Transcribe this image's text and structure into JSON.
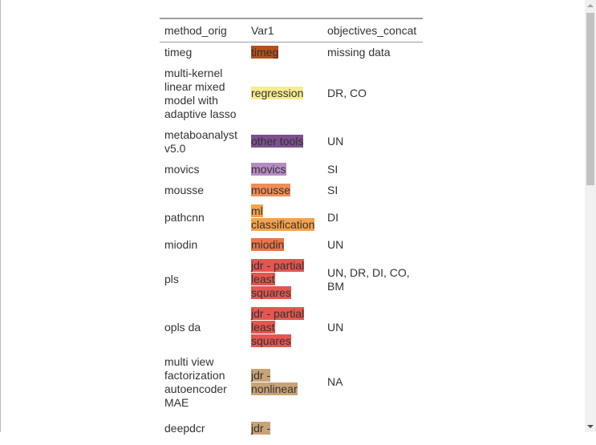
{
  "table": {
    "columns": [
      "method_orig",
      "Var1",
      "objectives_concat"
    ],
    "rows": [
      {
        "method": "timeg",
        "var1": "timeg",
        "color": "#b5501c",
        "objectives": "missing data"
      },
      {
        "method": "multi-kernel linear mixed model with adaptive lasso",
        "var1": "regression",
        "color": "#f7ec8f",
        "objectives": "DR, CO"
      },
      {
        "method": "metaboanalyst v5.0",
        "var1": "other tools",
        "color": "#7d508f",
        "objectives": "UN"
      },
      {
        "method": "movics",
        "var1": "movics",
        "color": "#b58bc4",
        "objectives": "SI"
      },
      {
        "method": "mousse",
        "var1": "mousse",
        "color": "#f18d55",
        "objectives": "SI"
      },
      {
        "method": "pathcnn",
        "var1": "ml classification",
        "color": "#f5a24a",
        "objectives": "DI"
      },
      {
        "method": "miodin",
        "var1": "miodin",
        "color": "#ec7447",
        "objectives": "UN"
      },
      {
        "method": "pls",
        "var1": "jdr - partial least squares",
        "color": "#e4564f",
        "objectives": "UN, DR, DI, CO, BM"
      },
      {
        "method": "opls da",
        "var1": "jdr - partial least squares",
        "color": "#e4564f",
        "objectives": "UN"
      },
      {
        "method": "multi view factorization autoencoder MAE",
        "var1": "jdr - nonlinear",
        "color": "#c8a377",
        "objectives": "NA"
      },
      {
        "method": "deepdcr",
        "var1": "jdr -",
        "color": "#c8a377",
        "objectives": ""
      }
    ]
  }
}
